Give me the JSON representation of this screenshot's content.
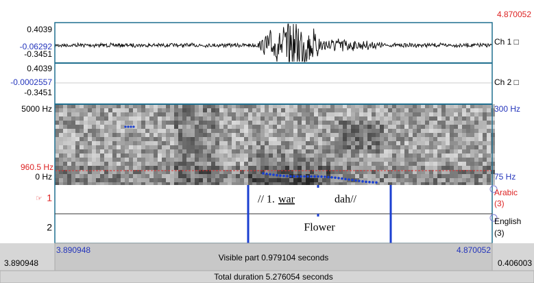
{
  "header": {
    "end_time": "4.870052"
  },
  "channels": [
    {
      "top": "0.4039",
      "mid": "-0.06292",
      "bottom": "-0.3451",
      "name": "Ch 1 □"
    },
    {
      "top": "0.4039",
      "mid": "-0.0002557",
      "bottom": "-0.3451",
      "name": "Ch 2 □"
    }
  ],
  "spectrogram": {
    "top": "5000 Hz",
    "cursor": "960.5 Hz",
    "bottom": "0 Hz",
    "pitch_top": "300 Hz",
    "pitch_bottom": "75 Hz"
  },
  "tiers": [
    {
      "pointer": "☞",
      "number": "1",
      "text_parts": [
        "// 1.",
        "war",
        "dah//"
      ],
      "name": "Arabic",
      "count": "(3)"
    },
    {
      "number": "2",
      "text": "Flower",
      "name": "English",
      "count": "(3)"
    }
  ],
  "footer": {
    "visible_start": "3.890948",
    "visible_label": "Visible part 0.979104 seconds",
    "visible_end": "4.870052",
    "window_start": "3.890948",
    "window_end": "0.406003",
    "total": "Total duration 5.276054 seconds"
  }
}
